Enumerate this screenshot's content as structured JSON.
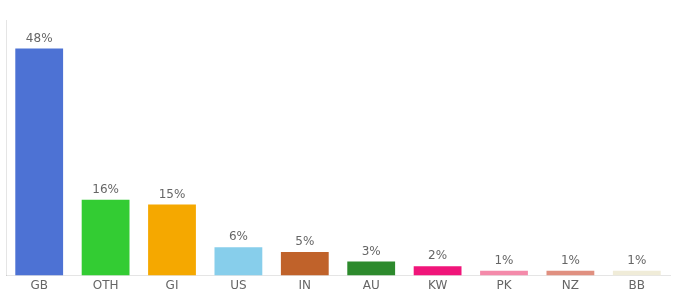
{
  "chart_data": {
    "type": "bar",
    "categories": [
      "GB",
      "OTH",
      "GI",
      "US",
      "IN",
      "AU",
      "KW",
      "PK",
      "NZ",
      "BB"
    ],
    "values": [
      48,
      16,
      15,
      6,
      5,
      3,
      2,
      1,
      1,
      1
    ],
    "value_labels": [
      "48%",
      "16%",
      "15%",
      "6%",
      "5%",
      "3%",
      "2%",
      "1%",
      "1%",
      "1%"
    ],
    "colors": [
      "#4d72d4",
      "#33cc33",
      "#f5a800",
      "#87ceeb",
      "#c0622a",
      "#2d8a2d",
      "#f0157a",
      "#f48aaa",
      "#e09080",
      "#f0ecd8"
    ],
    "ylim": [
      0,
      54
    ],
    "data_labels": true,
    "tick_labels": "x",
    "grid": false
  }
}
